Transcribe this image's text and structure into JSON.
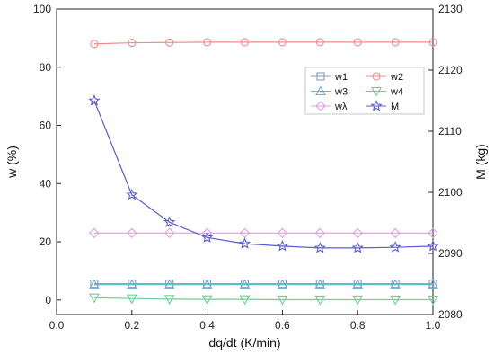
{
  "chart_data": {
    "type": "line",
    "title": "",
    "xlabel": "dq/dt (K/min)",
    "ylabel_left": "w (%)",
    "ylabel_right": "M (kg)",
    "x": [
      0.1,
      0.2,
      0.3,
      0.4,
      0.5,
      0.6,
      0.7,
      0.8,
      0.9,
      1.0
    ],
    "xlim": [
      0.0,
      1.0
    ],
    "xticks": [
      "0.0",
      "0.2",
      "0.4",
      "0.6",
      "0.8",
      "1.0"
    ],
    "ylim_left": [
      -5,
      100
    ],
    "yticks_left": [
      "0",
      "20",
      "40",
      "60",
      "80",
      "100"
    ],
    "ylim_right": [
      2080,
      2130
    ],
    "yticks_right": [
      "2080",
      "2090",
      "2100",
      "2110",
      "2120",
      "2130"
    ],
    "legend_position": "top-right",
    "grid": false,
    "series": [
      {
        "name": "w1",
        "axis": "left",
        "marker": "square",
        "color": "#8a9bb5",
        "values": [
          5.6,
          5.6,
          5.6,
          5.6,
          5.6,
          5.6,
          5.6,
          5.6,
          5.6,
          5.6
        ]
      },
      {
        "name": "w2",
        "axis": "left",
        "marker": "circle",
        "color": "#f08c8c",
        "values": [
          88.0,
          88.4,
          88.5,
          88.6,
          88.6,
          88.6,
          88.6,
          88.6,
          88.6,
          88.6
        ]
      },
      {
        "name": "w3",
        "axis": "left",
        "marker": "triangle-up",
        "color": "#6ab0d8",
        "values": [
          5.3,
          5.3,
          5.3,
          5.3,
          5.3,
          5.3,
          5.3,
          5.3,
          5.3,
          5.3
        ]
      },
      {
        "name": "w4",
        "axis": "left",
        "marker": "triangle-down",
        "color": "#6fcf97",
        "values": [
          0.8,
          0.5,
          0.3,
          0.2,
          0.2,
          0.1,
          0.1,
          0.1,
          0.1,
          0.1
        ]
      },
      {
        "name": "wλ",
        "axis": "left",
        "marker": "diamond",
        "color": "#e0a0e0",
        "values": [
          23.0,
          23.0,
          23.0,
          23.0,
          23.0,
          23.0,
          23.0,
          23.0,
          23.0,
          23.0
        ]
      },
      {
        "name": "M",
        "axis": "right",
        "marker": "star",
        "color": "#5b5bd6",
        "values": [
          2115.0,
          2099.6,
          2095.1,
          2092.6,
          2091.6,
          2091.2,
          2090.9,
          2090.9,
          2091.0,
          2091.2
        ]
      }
    ]
  }
}
